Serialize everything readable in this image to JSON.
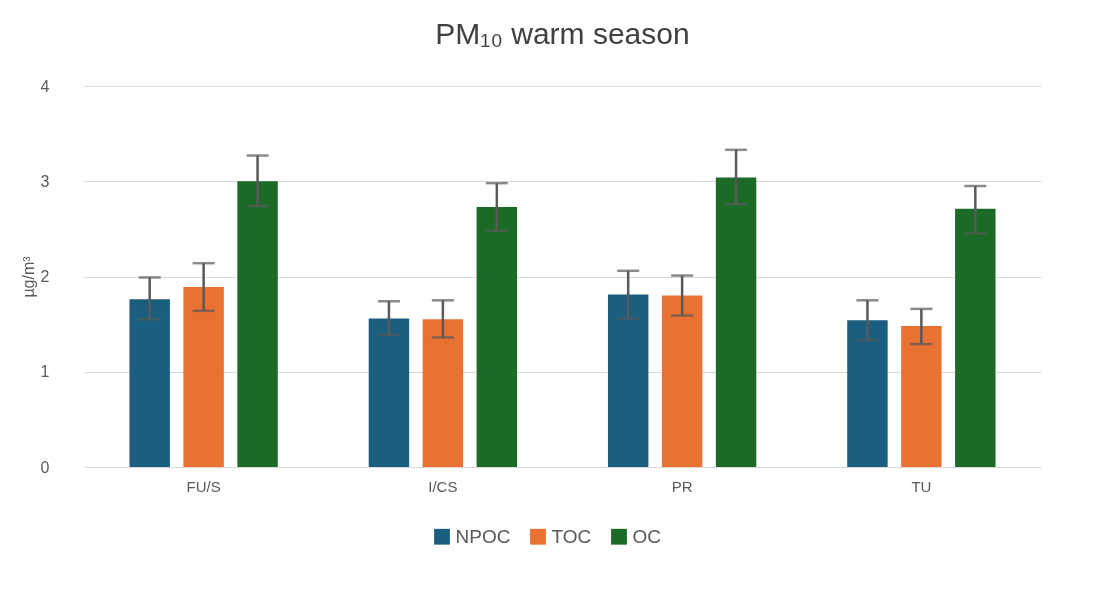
{
  "chart_data": {
    "type": "bar",
    "title": "PM₁₀ warm season",
    "ylabel": "µg/m³",
    "categories": [
      "FU/S",
      "I/CS",
      "PR",
      "TU"
    ],
    "series": [
      {
        "name": "NPOC",
        "color": "#1a5f80",
        "values": [
          1.76,
          1.56,
          1.81,
          1.54
        ],
        "errors": [
          [
            1.55,
            1.99
          ],
          [
            1.39,
            1.74
          ],
          [
            1.56,
            2.06
          ],
          [
            1.33,
            1.75
          ]
        ]
      },
      {
        "name": "TOC",
        "color": "#e97132",
        "values": [
          1.89,
          1.55,
          1.8,
          1.48
        ],
        "errors": [
          [
            1.64,
            2.14
          ],
          [
            1.36,
            1.75
          ],
          [
            1.59,
            2.01
          ],
          [
            1.29,
            1.66
          ]
        ]
      },
      {
        "name": "OC",
        "color": "#1b6b26",
        "values": [
          3.0,
          2.73,
          3.04,
          2.71
        ],
        "errors": [
          [
            2.74,
            3.27
          ],
          [
            2.48,
            2.98
          ],
          [
            2.76,
            3.33
          ],
          [
            2.45,
            2.95
          ]
        ]
      }
    ],
    "ylim": [
      0,
      4
    ],
    "yticks": [
      0,
      1,
      2,
      3,
      4
    ],
    "grid": "y",
    "legend": "bottom"
  }
}
